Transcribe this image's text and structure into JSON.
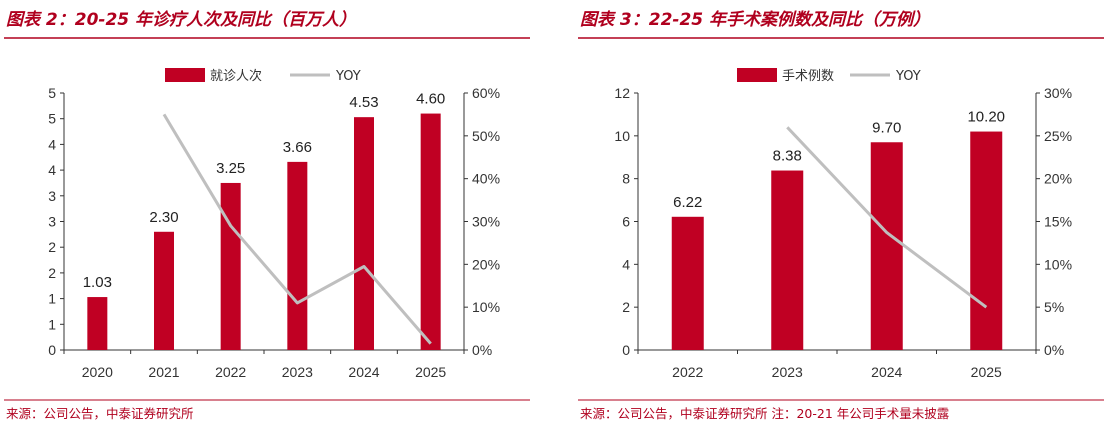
{
  "colors": {
    "bar": "#c00023",
    "yoy": "#bfbfbf",
    "accent": "#b0001e"
  },
  "chart_data": [
    {
      "type": "bar",
      "title": "图表 2：20-25 年诊疗人次及同比（百万人）",
      "categories": [
        "2020",
        "2021",
        "2022",
        "2023",
        "2024",
        "2025"
      ],
      "series": [
        {
          "name": "就诊人次",
          "type": "bar",
          "values": [
            1.03,
            2.3,
            3.25,
            3.66,
            4.53,
            4.6
          ]
        },
        {
          "name": "YOY",
          "type": "line",
          "axis": "right",
          "values": [
            null,
            0.55,
            0.29,
            0.11,
            0.195,
            0.015
          ]
        }
      ],
      "data_labels": [
        "1.03",
        "2.30",
        "3.25",
        "3.66",
        "4.53",
        "4.60"
      ],
      "ylim": [
        0,
        5
      ],
      "y_ticks": [
        "0",
        "1",
        "1",
        "2",
        "2",
        "3",
        "3",
        "4",
        "4",
        "5",
        "5"
      ],
      "y2lim": [
        0,
        0.6
      ],
      "y2_ticks": [
        "0%",
        "10%",
        "20%",
        "30%",
        "40%",
        "50%",
        "60%"
      ],
      "legend_position": "top",
      "source": "来源：公司公告，中泰证券研究所"
    },
    {
      "type": "bar",
      "title": "图表 3：22-25 年手术案例数及同比（万例）",
      "categories": [
        "2022",
        "2023",
        "2024",
        "2025"
      ],
      "series": [
        {
          "name": "手术例数",
          "type": "bar",
          "values": [
            6.22,
            8.38,
            9.7,
            10.2
          ]
        },
        {
          "name": "YOY",
          "type": "line",
          "axis": "right",
          "values": [
            null,
            0.26,
            0.137,
            0.05
          ]
        }
      ],
      "data_labels": [
        "6.22",
        "8.38",
        "9.70",
        "10.20"
      ],
      "ylim": [
        0,
        12
      ],
      "y_ticks": [
        "0",
        "2",
        "4",
        "6",
        "8",
        "10",
        "12"
      ],
      "y2lim": [
        0,
        0.3
      ],
      "y2_ticks": [
        "0%",
        "5%",
        "10%",
        "15%",
        "20%",
        "25%",
        "30%"
      ],
      "legend_position": "top",
      "source": "来源：公司公告，中泰证券研究所 注：20-21 年公司手术量未披露"
    }
  ]
}
